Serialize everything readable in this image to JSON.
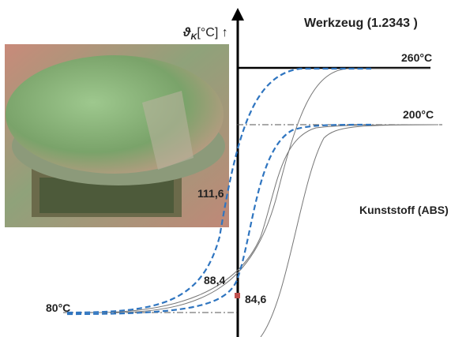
{
  "header": {
    "title": "Werkzeug (1.2343 )",
    "axis_symbol": "ϑ",
    "axis_subscript": "K",
    "axis_unit": "[°C] ↑"
  },
  "levels": {
    "tool_temp": "260°C",
    "melt_temp": "200°C",
    "start_temp": "80°C"
  },
  "material": "Kunststoff (ABS)",
  "points": {
    "upper": "111,6",
    "middle": "88,4",
    "lower": "84,6"
  }
}
